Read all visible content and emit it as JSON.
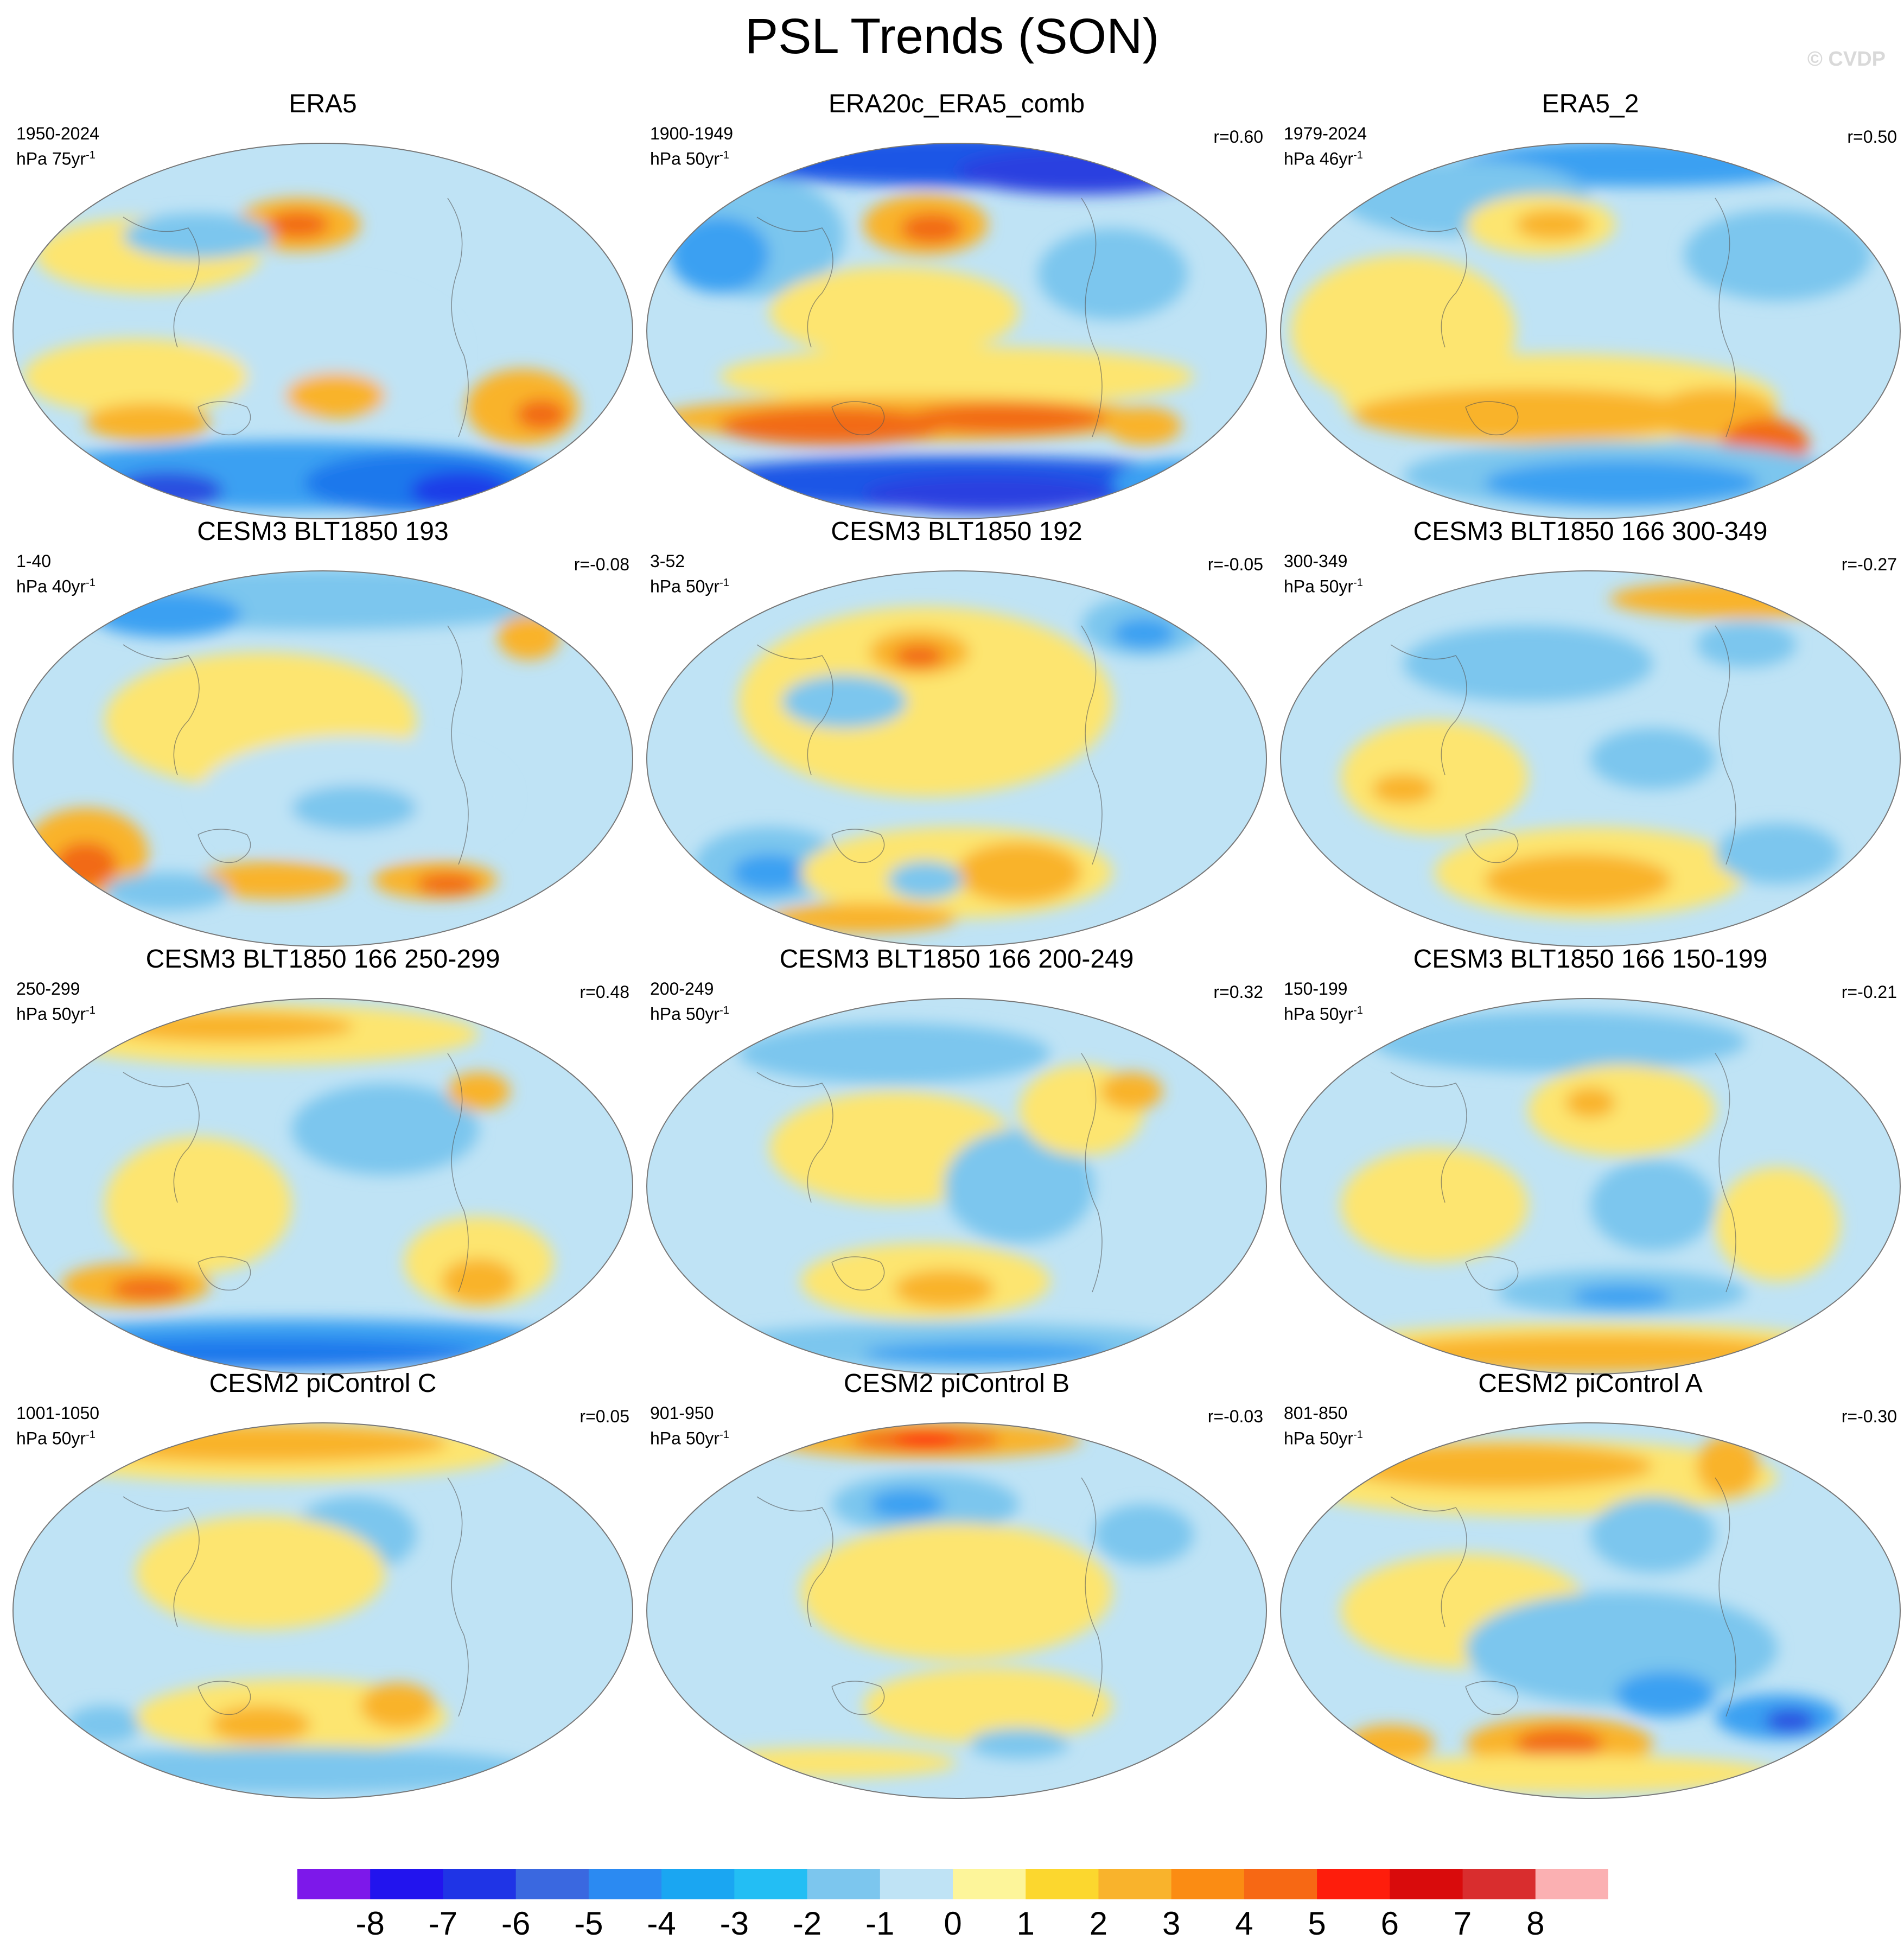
{
  "figure": {
    "title": "PSL Trends (SON)",
    "watermark": "© CVDP"
  },
  "panels": [
    {
      "title": "ERA5",
      "period": "1950-2024",
      "unit_prefix": "hPa 75yr",
      "unit_sup": "-1",
      "corr": "",
      "blobs": [
        [
          "#fde56f",
          0.22,
          0.3,
          0.18,
          0.1
        ],
        [
          "#f9b32c",
          0.46,
          0.22,
          0.1,
          0.07
        ],
        [
          "#f26a16",
          0.46,
          0.22,
          0.05,
          0.035
        ],
        [
          "#bfe3f5",
          0.5,
          0.55,
          0.22,
          0.18
        ],
        [
          "#fde56f",
          0.2,
          0.62,
          0.18,
          0.1
        ],
        [
          "#f9b32c",
          0.22,
          0.74,
          0.1,
          0.05
        ],
        [
          "#f9b32c",
          0.52,
          0.67,
          0.08,
          0.06
        ],
        [
          "#f9b32c",
          0.82,
          0.7,
          0.09,
          0.1
        ],
        [
          "#f26a16",
          0.85,
          0.72,
          0.04,
          0.04
        ],
        [
          "#7cc6ee",
          0.3,
          0.25,
          0.12,
          0.06
        ],
        [
          "#3aa0f2",
          0.45,
          0.88,
          0.42,
          0.09
        ],
        [
          "#1f78ec",
          0.65,
          0.9,
          0.18,
          0.08
        ],
        [
          "#1e3ce8",
          0.72,
          0.92,
          0.08,
          0.05
        ],
        [
          "#2b4fe0",
          0.25,
          0.92,
          0.09,
          0.05
        ]
      ]
    },
    {
      "title": "ERA20c_ERA5_comb",
      "period": "1900-1949",
      "unit_prefix": "hPa 50yr",
      "unit_sup": "-1",
      "corr": "r=0.60",
      "blobs": [
        [
          "#1f56e6",
          0.55,
          0.05,
          0.45,
          0.07
        ],
        [
          "#2b3fe0",
          0.7,
          0.08,
          0.2,
          0.06
        ],
        [
          "#7cc6ee",
          0.18,
          0.25,
          0.14,
          0.16
        ],
        [
          "#3aa0f2",
          0.12,
          0.3,
          0.08,
          0.1
        ],
        [
          "#f9b32c",
          0.45,
          0.22,
          0.1,
          0.08
        ],
        [
          "#f26a16",
          0.46,
          0.23,
          0.05,
          0.04
        ],
        [
          "#fde56f",
          0.4,
          0.45,
          0.2,
          0.12
        ],
        [
          "#fde56f",
          0.5,
          0.62,
          0.38,
          0.08
        ],
        [
          "#f9b32c",
          0.42,
          0.73,
          0.4,
          0.06
        ],
        [
          "#f26a16",
          0.3,
          0.75,
          0.18,
          0.05
        ],
        [
          "#f26a16",
          0.58,
          0.73,
          0.16,
          0.04
        ],
        [
          "#7cc6ee",
          0.75,
          0.35,
          0.12,
          0.12
        ],
        [
          "#f9b32c",
          0.8,
          0.75,
          0.06,
          0.05
        ],
        [
          "#1f56e6",
          0.5,
          0.9,
          0.45,
          0.07
        ],
        [
          "#2b3fe0",
          0.55,
          0.93,
          0.2,
          0.05
        ],
        [
          "#3aa0f2",
          0.85,
          0.9,
          0.1,
          0.06
        ]
      ]
    },
    {
      "title": "ERA5_2",
      "period": "1979-2024",
      "unit_prefix": "hPa 46yr",
      "unit_sup": "-1",
      "corr": "r=0.50",
      "blobs": [
        [
          "#3aa0f2",
          0.58,
          0.06,
          0.3,
          0.06
        ],
        [
          "#7cc6ee",
          0.3,
          0.15,
          0.2,
          0.1
        ],
        [
          "#fde56f",
          0.42,
          0.22,
          0.12,
          0.08
        ],
        [
          "#f9b32c",
          0.44,
          0.22,
          0.06,
          0.04
        ],
        [
          "#fde56f",
          0.2,
          0.5,
          0.18,
          0.2
        ],
        [
          "#7cc6ee",
          0.8,
          0.3,
          0.15,
          0.12
        ],
        [
          "#fde56f",
          0.45,
          0.68,
          0.35,
          0.12
        ],
        [
          "#f9b32c",
          0.4,
          0.72,
          0.28,
          0.07
        ],
        [
          "#f9b32c",
          0.7,
          0.72,
          0.1,
          0.07
        ],
        [
          "#f26a16",
          0.78,
          0.8,
          0.07,
          0.07
        ],
        [
          "#7cc6ee",
          0.55,
          0.88,
          0.35,
          0.09
        ],
        [
          "#3aa0f2",
          0.55,
          0.9,
          0.22,
          0.06
        ]
      ]
    },
    {
      "title": "CESM3 BLT1850 193",
      "period": "1-40",
      "unit_prefix": "hPa 40yr",
      "unit_sup": "-1",
      "corr": "r=-0.08",
      "blobs": [
        [
          "#7cc6ee",
          0.5,
          0.08,
          0.4,
          0.08
        ],
        [
          "#3aa0f2",
          0.25,
          0.12,
          0.12,
          0.06
        ],
        [
          "#fde56f",
          0.4,
          0.4,
          0.25,
          0.18
        ],
        [
          "#bfe3f5",
          0.55,
          0.6,
          0.25,
          0.16
        ],
        [
          "#7cc6ee",
          0.55,
          0.63,
          0.1,
          0.06
        ],
        [
          "#f9b32c",
          0.12,
          0.75,
          0.1,
          0.12
        ],
        [
          "#f26a16",
          0.12,
          0.78,
          0.05,
          0.06
        ],
        [
          "#f9b32c",
          0.42,
          0.82,
          0.12,
          0.05
        ],
        [
          "#f9b32c",
          0.68,
          0.82,
          0.1,
          0.05
        ],
        [
          "#f26a16",
          0.7,
          0.83,
          0.05,
          0.03
        ],
        [
          "#7cc6ee",
          0.25,
          0.85,
          0.1,
          0.05
        ],
        [
          "#f9b32c",
          0.83,
          0.18,
          0.05,
          0.06
        ]
      ]
    },
    {
      "title": "CESM3 BLT1850 192",
      "period": "3-52",
      "unit_prefix": "hPa 50yr",
      "unit_sup": "-1",
      "corr": "r=-0.05",
      "blobs": [
        [
          "#fde56f",
          0.45,
          0.35,
          0.3,
          0.25
        ],
        [
          "#f9b32c",
          0.44,
          0.22,
          0.08,
          0.06
        ],
        [
          "#f26a16",
          0.44,
          0.23,
          0.04,
          0.03
        ],
        [
          "#7cc6ee",
          0.32,
          0.35,
          0.1,
          0.07
        ],
        [
          "#7cc6ee",
          0.8,
          0.15,
          0.1,
          0.08
        ],
        [
          "#3aa0f2",
          0.8,
          0.17,
          0.05,
          0.04
        ],
        [
          "#7cc6ee",
          0.2,
          0.78,
          0.12,
          0.1
        ],
        [
          "#3aa0f2",
          0.2,
          0.8,
          0.06,
          0.05
        ],
        [
          "#fde56f",
          0.5,
          0.8,
          0.25,
          0.12
        ],
        [
          "#f9b32c",
          0.6,
          0.8,
          0.1,
          0.08
        ],
        [
          "#7cc6ee",
          0.45,
          0.82,
          0.06,
          0.05
        ],
        [
          "#f9b32c",
          0.35,
          0.92,
          0.15,
          0.04
        ]
      ]
    },
    {
      "title": "CESM3 BLT1850 166 300-349",
      "period": "300-349",
      "unit_prefix": "hPa 50yr",
      "unit_sup": "-1",
      "corr": "r=-0.27",
      "blobs": [
        [
          "#f9b32c",
          0.75,
          0.08,
          0.22,
          0.05
        ],
        [
          "#7cc6ee",
          0.4,
          0.25,
          0.2,
          0.1
        ],
        [
          "#7cc6ee",
          0.75,
          0.2,
          0.08,
          0.06
        ],
        [
          "#fde56f",
          0.25,
          0.55,
          0.15,
          0.15
        ],
        [
          "#f9b32c",
          0.2,
          0.58,
          0.05,
          0.04
        ],
        [
          "#7cc6ee",
          0.6,
          0.5,
          0.1,
          0.08
        ],
        [
          "#fde56f",
          0.5,
          0.8,
          0.25,
          0.12
        ],
        [
          "#f9b32c",
          0.48,
          0.82,
          0.15,
          0.07
        ],
        [
          "#7cc6ee",
          0.8,
          0.75,
          0.1,
          0.08
        ]
      ]
    },
    {
      "title": "CESM3 BLT1850 166 250-299",
      "period": "250-299",
      "unit_prefix": "hPa 50yr",
      "unit_sup": "-1",
      "corr": "r=0.48",
      "blobs": [
        [
          "#fde56f",
          0.4,
          0.1,
          0.35,
          0.08
        ],
        [
          "#f9b32c",
          0.35,
          0.08,
          0.2,
          0.04
        ],
        [
          "#7cc6ee",
          0.6,
          0.35,
          0.15,
          0.12
        ],
        [
          "#f9b32c",
          0.75,
          0.25,
          0.05,
          0.05
        ],
        [
          "#fde56f",
          0.3,
          0.55,
          0.15,
          0.18
        ],
        [
          "#fde56f",
          0.75,
          0.7,
          0.12,
          0.12
        ],
        [
          "#f9b32c",
          0.75,
          0.75,
          0.06,
          0.06
        ],
        [
          "#f9b32c",
          0.2,
          0.76,
          0.12,
          0.06
        ],
        [
          "#f26a16",
          0.22,
          0.77,
          0.06,
          0.03
        ],
        [
          "#3aa0f2",
          0.45,
          0.91,
          0.45,
          0.06
        ],
        [
          "#1f78ec",
          0.4,
          0.94,
          0.35,
          0.04
        ]
      ]
    },
    {
      "title": "CESM3 BLT1850 166 200-249",
      "period": "200-249",
      "unit_prefix": "hPa 50yr",
      "unit_sup": "-1",
      "corr": "r=0.32",
      "blobs": [
        [
          "#7cc6ee",
          0.4,
          0.15,
          0.25,
          0.08
        ],
        [
          "#fde56f",
          0.4,
          0.4,
          0.2,
          0.15
        ],
        [
          "#7cc6ee",
          0.6,
          0.5,
          0.12,
          0.15
        ],
        [
          "#fde56f",
          0.7,
          0.3,
          0.1,
          0.12
        ],
        [
          "#f9b32c",
          0.78,
          0.25,
          0.05,
          0.05
        ],
        [
          "#fde56f",
          0.45,
          0.75,
          0.2,
          0.1
        ],
        [
          "#f9b32c",
          0.48,
          0.77,
          0.08,
          0.05
        ],
        [
          "#7cc6ee",
          0.5,
          0.92,
          0.4,
          0.06
        ],
        [
          "#3aa0f2",
          0.55,
          0.94,
          0.2,
          0.03
        ]
      ]
    },
    {
      "title": "CESM3 BLT1850 166 150-199",
      "period": "150-199",
      "unit_prefix": "hPa 50yr",
      "unit_sup": "-1",
      "corr": "r=-0.21",
      "blobs": [
        [
          "#7cc6ee",
          0.45,
          0.12,
          0.3,
          0.08
        ],
        [
          "#fde56f",
          0.55,
          0.3,
          0.15,
          0.12
        ],
        [
          "#f9b32c",
          0.5,
          0.28,
          0.04,
          0.04
        ],
        [
          "#fde56f",
          0.25,
          0.55,
          0.15,
          0.15
        ],
        [
          "#7cc6ee",
          0.6,
          0.55,
          0.1,
          0.12
        ],
        [
          "#fde56f",
          0.8,
          0.6,
          0.1,
          0.15
        ],
        [
          "#7cc6ee",
          0.55,
          0.78,
          0.2,
          0.06
        ],
        [
          "#3aa0f2",
          0.55,
          0.79,
          0.08,
          0.03
        ],
        [
          "#fde56f",
          0.5,
          0.92,
          0.4,
          0.06
        ],
        [
          "#f9b32c",
          0.5,
          0.94,
          0.35,
          0.05
        ]
      ]
    },
    {
      "title": "CESM2 piControl C",
      "period": "1001-1050",
      "unit_prefix": "hPa 50yr",
      "unit_sup": "-1",
      "corr": "r=0.05",
      "blobs": [
        [
          "#fde56f",
          0.4,
          0.08,
          0.4,
          0.08
        ],
        [
          "#f9b32c",
          0.4,
          0.06,
          0.3,
          0.05
        ],
        [
          "#7cc6ee",
          0.55,
          0.3,
          0.1,
          0.1
        ],
        [
          "#fde56f",
          0.4,
          0.4,
          0.2,
          0.15
        ],
        [
          "#7cc6ee",
          0.15,
          0.8,
          0.06,
          0.05
        ],
        [
          "#fde56f",
          0.45,
          0.78,
          0.25,
          0.1
        ],
        [
          "#f9b32c",
          0.4,
          0.8,
          0.08,
          0.05
        ],
        [
          "#f9b32c",
          0.62,
          0.75,
          0.06,
          0.06
        ],
        [
          "#7cc6ee",
          0.45,
          0.92,
          0.4,
          0.06
        ]
      ]
    },
    {
      "title": "CESM2 piControl B",
      "period": "901-950",
      "unit_prefix": "hPa 50yr",
      "unit_sup": "-1",
      "corr": "r=-0.03",
      "blobs": [
        [
          "#f9b32c",
          0.45,
          0.05,
          0.25,
          0.05
        ],
        [
          "#f26a16",
          0.45,
          0.05,
          0.12,
          0.03
        ],
        [
          "#fe1d0c",
          0.45,
          0.05,
          0.05,
          0.02
        ],
        [
          "#7cc6ee",
          0.45,
          0.22,
          0.15,
          0.08
        ],
        [
          "#3aa0f2",
          0.42,
          0.22,
          0.06,
          0.04
        ],
        [
          "#fde56f",
          0.5,
          0.45,
          0.25,
          0.18
        ],
        [
          "#7cc6ee",
          0.8,
          0.3,
          0.08,
          0.08
        ],
        [
          "#fde56f",
          0.55,
          0.75,
          0.2,
          0.1
        ],
        [
          "#7cc6ee",
          0.6,
          0.85,
          0.08,
          0.04
        ],
        [
          "#fde56f",
          0.3,
          0.9,
          0.2,
          0.04
        ]
      ]
    },
    {
      "title": "CESM2 piControl A",
      "period": "801-850",
      "unit_prefix": "hPa 50yr",
      "unit_sup": "-1",
      "corr": "r=-0.30",
      "blobs": [
        [
          "#fde56f",
          0.4,
          0.15,
          0.4,
          0.1
        ],
        [
          "#f9b32c",
          0.35,
          0.12,
          0.25,
          0.06
        ],
        [
          "#f9b32c",
          0.72,
          0.12,
          0.05,
          0.08
        ],
        [
          "#7cc6ee",
          0.6,
          0.3,
          0.1,
          0.1
        ],
        [
          "#fde56f",
          0.3,
          0.5,
          0.2,
          0.15
        ],
        [
          "#7cc6ee",
          0.55,
          0.6,
          0.25,
          0.15
        ],
        [
          "#3aa0f2",
          0.62,
          0.72,
          0.08,
          0.06
        ],
        [
          "#3aa0f2",
          0.8,
          0.78,
          0.1,
          0.06
        ],
        [
          "#2b4fe0",
          0.82,
          0.79,
          0.04,
          0.03
        ],
        [
          "#f9b32c",
          0.45,
          0.85,
          0.15,
          0.07
        ],
        [
          "#f26a16",
          0.45,
          0.85,
          0.07,
          0.04
        ],
        [
          "#f9b32c",
          0.18,
          0.85,
          0.07,
          0.05
        ],
        [
          "#fde56f",
          0.45,
          0.93,
          0.35,
          0.05
        ]
      ]
    }
  ],
  "colorbar": {
    "colors": [
      "#7d18ea",
      "#2214ee",
      "#1f34e6",
      "#3a68e0",
      "#2b8af2",
      "#1aa6f2",
      "#23bef4",
      "#7cc6ee",
      "#bfe3f5",
      "#fdf59a",
      "#fcd72e",
      "#f9b32c",
      "#fb8c13",
      "#f76814",
      "#fe1d0c",
      "#d90b0c",
      "#d92d2e",
      "#fbb0b2"
    ],
    "labels": [
      "-8",
      "-7",
      "-6",
      "-5",
      "-4",
      "-3",
      "-2",
      "-1",
      "0",
      "1",
      "2",
      "3",
      "4",
      "5",
      "6",
      "7",
      "8"
    ]
  }
}
